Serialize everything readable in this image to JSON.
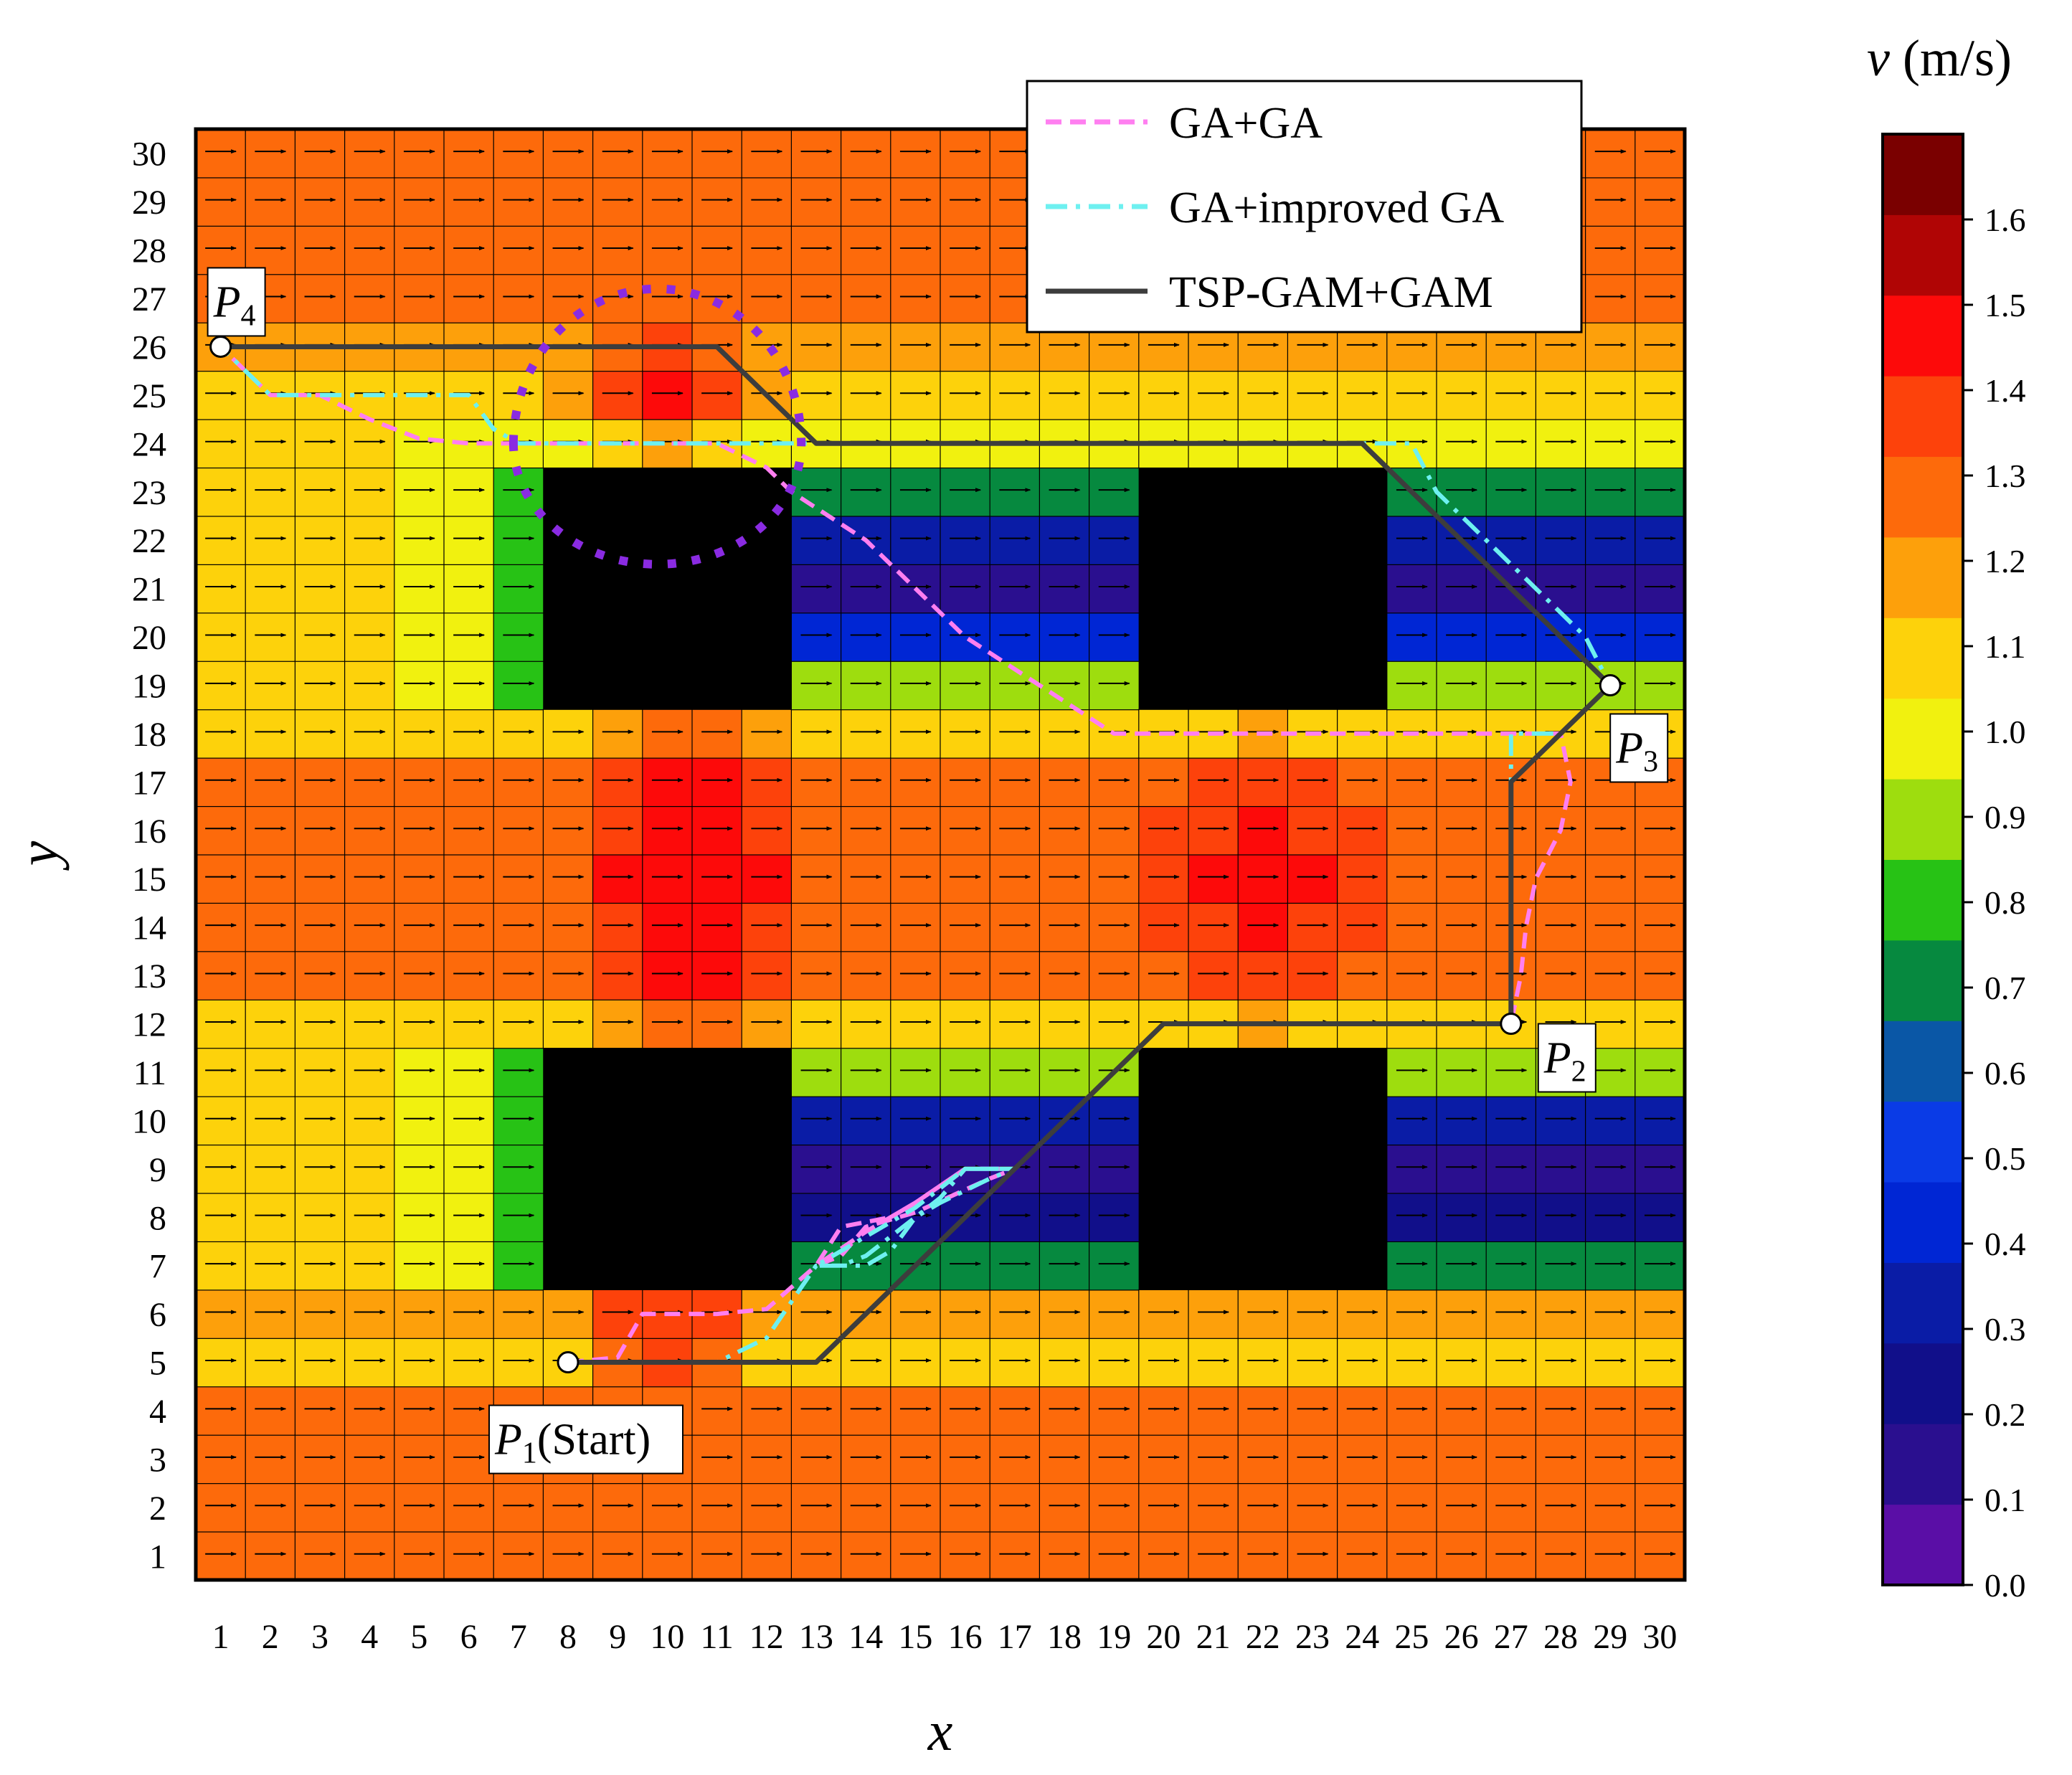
{
  "chart_data": {
    "type": "heatmap",
    "xlabel": "x",
    "ylabel": "y",
    "x_ticks": [
      "1",
      "2",
      "3",
      "4",
      "5",
      "6",
      "7",
      "8",
      "9",
      "10",
      "11",
      "12",
      "13",
      "14",
      "15",
      "16",
      "17",
      "18",
      "19",
      "20",
      "21",
      "22",
      "23",
      "24",
      "25",
      "26",
      "27",
      "28",
      "29",
      "30"
    ],
    "y_ticks": [
      "1",
      "2",
      "3",
      "4",
      "5",
      "6",
      "7",
      "8",
      "9",
      "10",
      "11",
      "12",
      "13",
      "14",
      "15",
      "16",
      "17",
      "18",
      "19",
      "20",
      "21",
      "22",
      "23",
      "24",
      "25",
      "26",
      "27",
      "28",
      "29",
      "30"
    ],
    "xlim": [
      0.5,
      30.5
    ],
    "ylim": [
      0.5,
      30.5
    ],
    "grid_size": [
      30,
      30
    ],
    "colorbar": {
      "title_var": "v",
      "title_unit": " (m/s)",
      "min": 0.0,
      "max": 1.7,
      "ticks": [
        "0.0",
        "0.1",
        "0.2",
        "0.3",
        "0.4",
        "0.5",
        "0.6",
        "0.7",
        "0.8",
        "0.9",
        "1.0",
        "1.1",
        "1.2",
        "1.3",
        "1.4",
        "1.5",
        "1.6"
      ],
      "levels": [
        "#5a0ea6",
        "#2a0f8f",
        "#110f8a",
        "#0a1ca6",
        "#0026d4",
        "#0a3be6",
        "#0a57a6",
        "#06893f",
        "#27c215",
        "#9edd0e",
        "#f1f10f",
        "#fdd20b",
        "#fda00b",
        "#fd6a0b",
        "#fd420b",
        "#fd0a0a",
        "#b00505",
        "#7a0000"
      ]
    },
    "field_model": {
      "base_rows": [
        {
          "y": [
            1,
            4
          ],
          "value": 1.3
        },
        {
          "y": [
            5,
            5
          ],
          "value": 1.1
        },
        {
          "y": [
            6,
            6
          ],
          "value": 1.2
        },
        {
          "y": [
            7,
            7
          ],
          "value": 0.75
        },
        {
          "y": [
            8,
            8
          ],
          "value": 0.2
        },
        {
          "y": [
            9,
            9
          ],
          "value": 0.1
        },
        {
          "y": [
            10,
            10
          ],
          "value": 0.35
        },
        {
          "y": [
            11,
            11
          ],
          "value": 0.85
        },
        {
          "y": [
            12,
            12
          ],
          "value": 1.1
        },
        {
          "y": [
            13,
            17
          ],
          "value": 1.25
        },
        {
          "y": [
            18,
            18
          ],
          "value": 1.1
        },
        {
          "y": [
            19,
            19
          ],
          "value": 0.85
        },
        {
          "y": [
            20,
            20
          ],
          "value": 0.45
        },
        {
          "y": [
            21,
            21
          ],
          "value": 0.15
        },
        {
          "y": [
            22,
            22
          ],
          "value": 0.3
        },
        {
          "y": [
            23,
            23
          ],
          "value": 0.75
        },
        {
          "y": [
            24,
            24
          ],
          "value": 1.0
        },
        {
          "y": [
            25,
            25
          ],
          "value": 1.1
        },
        {
          "y": [
            26,
            26
          ],
          "value": 1.2
        },
        {
          "y": [
            27,
            30
          ],
          "value": 1.3
        }
      ],
      "left_columns": [
        {
          "x": [
            1,
            4
          ],
          "value": 1.08
        },
        {
          "x": [
            5,
            6
          ],
          "value": 0.95
        },
        {
          "x": [
            7,
            7
          ],
          "value": 0.8
        }
      ],
      "hotspots": [
        {
          "x": 10.5,
          "y": 15,
          "rx": 2.6,
          "ry": 4.2,
          "peak": 1.52
        },
        {
          "x": 22,
          "y": 15,
          "rx": 3.2,
          "ry": 3.2,
          "peak": 1.45
        },
        {
          "x": 10,
          "y": 25,
          "rx": 2.2,
          "ry": 1.4,
          "peak": 1.45
        },
        {
          "x": 10,
          "y": 5.5,
          "rx": 2.0,
          "ry": 1.2,
          "peak": 1.42
        }
      ]
    },
    "obstacles": [
      {
        "x": [
          8,
          12
        ],
        "y": [
          7,
          11
        ]
      },
      {
        "x": [
          20,
          24
        ],
        "y": [
          7,
          11
        ]
      },
      {
        "x": [
          8,
          12
        ],
        "y": [
          19,
          23
        ]
      },
      {
        "x": [
          20,
          24
        ],
        "y": [
          19,
          23
        ]
      }
    ],
    "waypoints": [
      {
        "label": "P",
        "sub": "1",
        "suffix": "(Start)",
        "x": 8,
        "y": 5
      },
      {
        "label": "P",
        "sub": "2",
        "suffix": "",
        "x": 27,
        "y": 12
      },
      {
        "label": "P",
        "sub": "3",
        "suffix": "",
        "x": 29,
        "y": 19
      },
      {
        "label": "P",
        "sub": "4",
        "suffix": "",
        "x": 1,
        "y": 26
      }
    ],
    "series": [
      {
        "name": "GA+GA",
        "color": "#ff7ff0",
        "style": "dashed",
        "points": [
          [
            8,
            5
          ],
          [
            9,
            5.1
          ],
          [
            9.5,
            6
          ],
          [
            11,
            6
          ],
          [
            12,
            6.1
          ],
          [
            13,
            7
          ],
          [
            13.5,
            7.8
          ],
          [
            14.5,
            8
          ],
          [
            15,
            8.3
          ],
          [
            16,
            9
          ],
          [
            17,
            9
          ],
          [
            16.5,
            8.8
          ],
          [
            15,
            8.1
          ],
          [
            14,
            7.8
          ],
          [
            13.5,
            7.2
          ],
          [
            13,
            7
          ],
          [
            14,
            7.7
          ],
          [
            15,
            8.3
          ],
          [
            16,
            9
          ],
          [
            17,
            9
          ],
          [
            18,
            10
          ],
          [
            19,
            11
          ],
          [
            20,
            12
          ],
          [
            27,
            12
          ],
          [
            27.2,
            13
          ],
          [
            27.3,
            14
          ],
          [
            27.5,
            15
          ],
          [
            28,
            16
          ],
          [
            28.2,
            17
          ],
          [
            28,
            18
          ],
          [
            27,
            18
          ],
          [
            19,
            18
          ],
          [
            17.5,
            19
          ],
          [
            16,
            20
          ],
          [
            14,
            22
          ],
          [
            12.5,
            23
          ],
          [
            12,
            23.5
          ],
          [
            11,
            24
          ],
          [
            9,
            24
          ],
          [
            7,
            24
          ],
          [
            6,
            24
          ],
          [
            5,
            24.1
          ],
          [
            4,
            24.5
          ],
          [
            3,
            25
          ],
          [
            2,
            25
          ],
          [
            1,
            26
          ]
        ]
      },
      {
        "name": "GA+improved GA",
        "color": "#6ef0f0",
        "style": "dashdot",
        "points": [
          [
            8,
            5
          ],
          [
            9,
            5
          ],
          [
            11,
            5
          ],
          [
            12,
            5.5
          ],
          [
            13,
            7
          ],
          [
            14,
            7
          ],
          [
            14.5,
            7.3
          ],
          [
            15,
            8
          ],
          [
            15.5,
            8.4
          ],
          [
            16,
            9
          ],
          [
            17,
            9
          ],
          [
            16.5,
            8.8
          ],
          [
            15.5,
            8.3
          ],
          [
            15,
            8
          ],
          [
            14,
            7.2
          ],
          [
            13.5,
            7
          ],
          [
            13,
            7
          ],
          [
            14,
            7.6
          ],
          [
            15,
            8.2
          ],
          [
            16,
            9
          ],
          [
            17,
            9
          ],
          [
            18,
            10
          ],
          [
            19,
            11
          ],
          [
            20,
            12
          ],
          [
            27,
            12
          ],
          [
            27,
            13
          ],
          [
            27,
            15
          ],
          [
            27,
            17
          ],
          [
            27,
            18
          ],
          [
            28,
            18
          ],
          [
            29,
            19
          ],
          [
            28.5,
            20
          ],
          [
            27.5,
            21
          ],
          [
            26.5,
            22
          ],
          [
            25.5,
            23
          ],
          [
            25,
            24
          ],
          [
            24,
            24
          ],
          [
            20,
            24
          ],
          [
            12,
            24
          ],
          [
            7,
            24
          ],
          [
            6.5,
            24.3
          ],
          [
            6,
            25
          ],
          [
            5,
            25
          ],
          [
            4,
            25
          ],
          [
            3,
            25
          ],
          [
            2,
            25
          ],
          [
            1,
            26
          ]
        ]
      },
      {
        "name": "TSP-GAM+GAM",
        "color": "#3d3d3d",
        "style": "solid",
        "points": [
          [
            8,
            5
          ],
          [
            13,
            5
          ],
          [
            15,
            7
          ],
          [
            17,
            9
          ],
          [
            19,
            11
          ],
          [
            20,
            12
          ],
          [
            27,
            12
          ],
          [
            27,
            17
          ],
          [
            28,
            18
          ],
          [
            29,
            19
          ],
          [
            28,
            20
          ],
          [
            27,
            21
          ],
          [
            26,
            22
          ],
          [
            25,
            23
          ],
          [
            24,
            24
          ],
          [
            13,
            24
          ],
          [
            12,
            25
          ],
          [
            11,
            26
          ],
          [
            1,
            26
          ]
        ]
      }
    ],
    "extra_curve": {
      "color": "#8a2be2",
      "style": "dotted",
      "center": [
        9.8,
        24
      ],
      "rx": 2.9,
      "ry_top": 3.2,
      "ry_bottom": 2.5
    },
    "arrow_direction": "east with slight upward tilt",
    "legend_position": "top-right"
  }
}
